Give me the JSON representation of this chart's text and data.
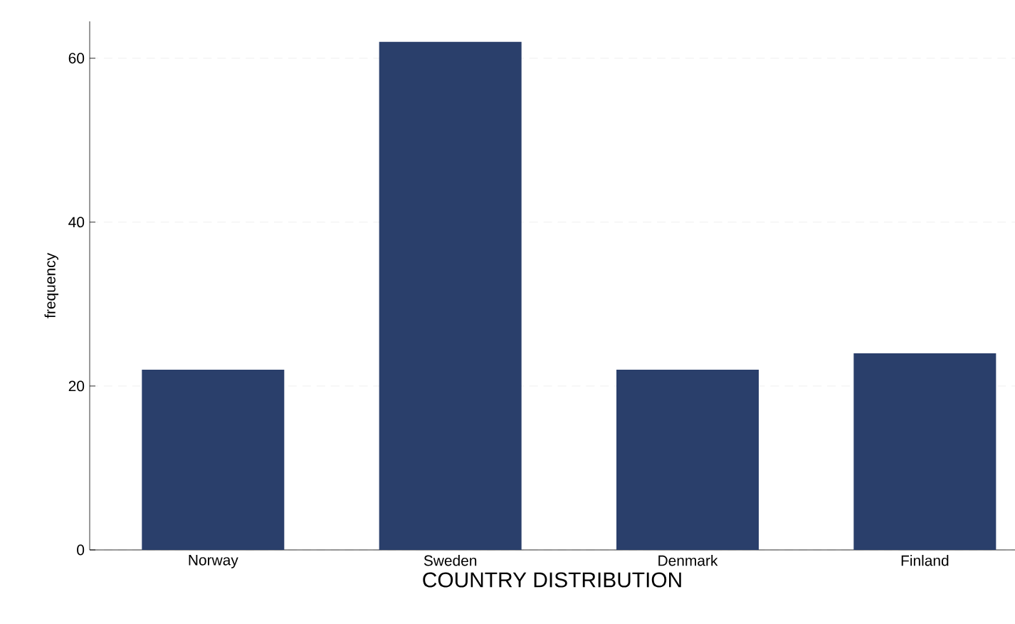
{
  "chart_data": {
    "type": "bar",
    "xlabel": "COUNTRY DISTRIBUTION",
    "ylabel": "frequency",
    "categories": [
      "Norway",
      "Sweden",
      "Denmark",
      "Finland"
    ],
    "values": [
      22,
      62,
      22,
      24
    ],
    "color": "#2a3f6b",
    "ylim": [
      0,
      64.5
    ],
    "yticks": [
      0,
      20,
      40,
      60
    ],
    "grid": "y"
  }
}
